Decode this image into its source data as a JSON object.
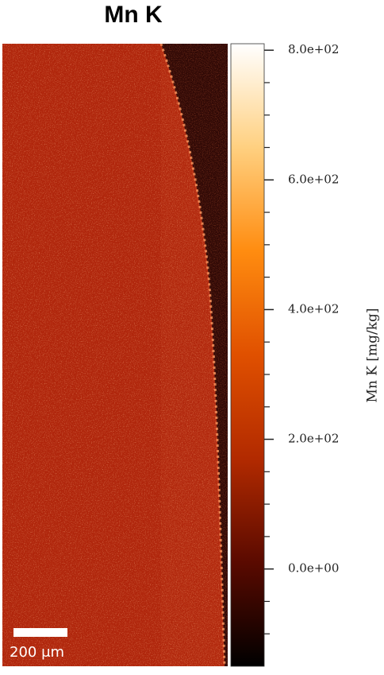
{
  "chart_data": {
    "type": "image",
    "title": "Mn K",
    "colorbar_label": "Mn K  [mg/kg]",
    "scale_bar_label": "200 μm",
    "colormap": [
      "#000000",
      "#5a0a00",
      "#b22a00",
      "#e05000",
      "#ff8c10",
      "#ffd080",
      "#ffffff"
    ],
    "clim": [
      -150,
      810
    ],
    "cticks": [
      {
        "value": 0,
        "label": "0.0e+00"
      },
      {
        "value": 200,
        "label": "2.0e+02"
      },
      {
        "value": 400,
        "label": "4.0e+02"
      },
      {
        "value": 600,
        "label": "6.0e+02"
      },
      {
        "value": 800,
        "label": "8.0e+02"
      }
    ],
    "cminor_ticks": [
      -100,
      -50,
      50,
      100,
      150,
      250,
      300,
      350,
      450,
      500,
      550,
      650,
      700,
      750
    ]
  }
}
